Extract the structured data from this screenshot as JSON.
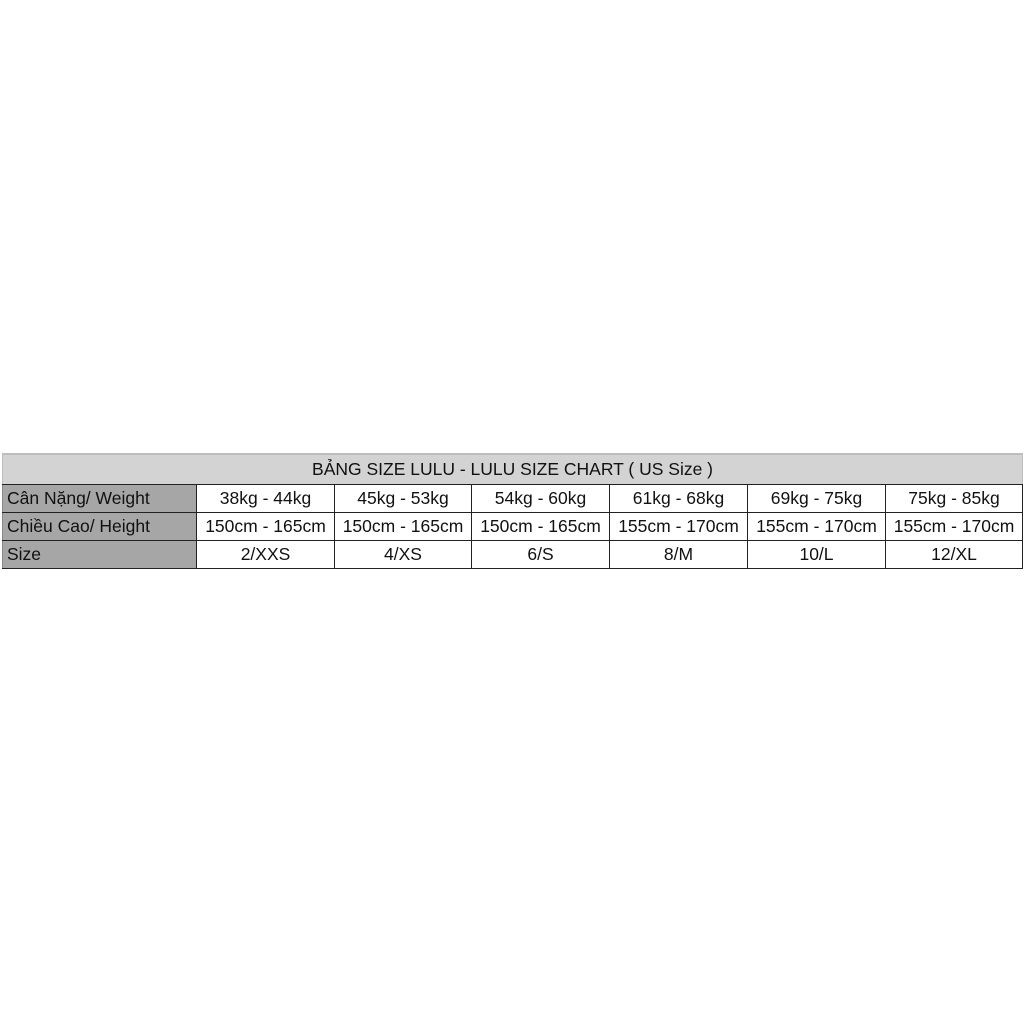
{
  "title": "BẢNG SIZE LULU - LULU SIZE CHART ( US Size )",
  "rows": [
    {
      "label": "Cân Nặng/ Weight",
      "values": [
        "38kg - 44kg",
        "45kg - 53kg",
        "54kg - 60kg",
        "61kg - 68kg",
        "69kg - 75kg",
        "75kg - 85kg"
      ]
    },
    {
      "label": "Chiều Cao/ Height",
      "values": [
        "150cm - 165cm",
        "150cm - 165cm",
        "150cm - 165cm",
        "155cm - 170cm",
        "155cm - 170cm",
        "155cm - 170cm"
      ]
    },
    {
      "label": "Size",
      "values": [
        "2/XXS",
        "4/XS",
        "6/S",
        "8/M",
        "10/L",
        "12/XL"
      ]
    }
  ],
  "colors": {
    "header_bg": "#d3d3d3",
    "label_bg": "#a6a6a6"
  }
}
